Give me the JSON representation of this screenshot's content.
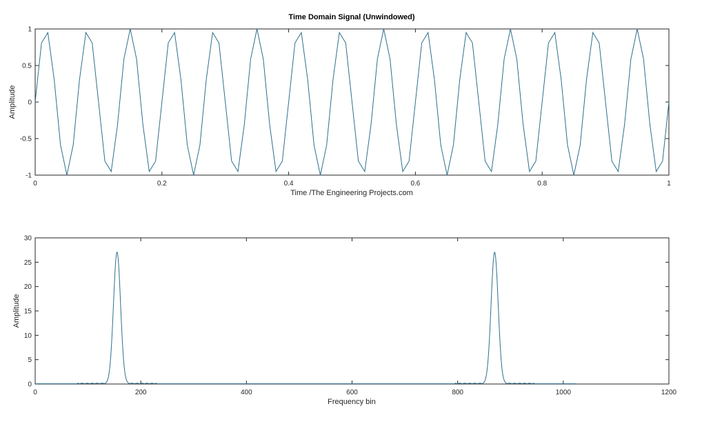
{
  "chart_data": [
    {
      "type": "line",
      "title": "Time Domain Signal (Unwindowed)",
      "xlabel": "Time /The Engineering Projects.com",
      "ylabel": "Amplitude",
      "xlim": [
        0,
        1
      ],
      "ylim": [
        -1,
        1
      ],
      "xticks": [
        0,
        0.2,
        0.4,
        0.6,
        0.8,
        1
      ],
      "xtick_labels": [
        "0",
        "0.2",
        "0.4",
        "0.6",
        "0.8",
        "1"
      ],
      "yticks": [
        -1,
        -0.5,
        0,
        0.5,
        1
      ],
      "ytick_labels": [
        "-1",
        "-0.5",
        "0",
        "0.5",
        "1"
      ],
      "grid": false,
      "line_color": "#2c6e8a",
      "series": [
        {
          "signal": "sin(2*pi*15*t)",
          "x": [
            0.0,
            0.01,
            0.02,
            0.03,
            0.04,
            0.05,
            0.06,
            0.07,
            0.08,
            0.09,
            0.1,
            0.11,
            0.12,
            0.13,
            0.14,
            0.15,
            0.16,
            0.17,
            0.18,
            0.19,
            0.2,
            0.21,
            0.22,
            0.23,
            0.24,
            0.25,
            0.26,
            0.27,
            0.28,
            0.29,
            0.3,
            0.31,
            0.32,
            0.33,
            0.34,
            0.35,
            0.36,
            0.37,
            0.38,
            0.39,
            0.4,
            0.41,
            0.42,
            0.43,
            0.44,
            0.45,
            0.46,
            0.47,
            0.48,
            0.49,
            0.5,
            0.51,
            0.52,
            0.53,
            0.54,
            0.55,
            0.56,
            0.57,
            0.58,
            0.59,
            0.6,
            0.61,
            0.62,
            0.63,
            0.64,
            0.65,
            0.66,
            0.67,
            0.68,
            0.69,
            0.7,
            0.71,
            0.72,
            0.73,
            0.74,
            0.75,
            0.76,
            0.77,
            0.78,
            0.79,
            0.8,
            0.81,
            0.82,
            0.83,
            0.84,
            0.85,
            0.86,
            0.87,
            0.88,
            0.89,
            0.9,
            0.91,
            0.92,
            0.93,
            0.94,
            0.95,
            0.96,
            0.97,
            0.98,
            0.99,
            1.0
          ],
          "y": [
            0.0,
            0.809,
            0.951,
            0.309,
            -0.588,
            -1.0,
            -0.588,
            0.309,
            0.951,
            0.809,
            0.0,
            -0.809,
            -0.951,
            -0.309,
            0.588,
            1.0,
            0.588,
            -0.309,
            -0.951,
            -0.809,
            0.0,
            0.809,
            0.951,
            0.309,
            -0.588,
            -1.0,
            -0.588,
            0.309,
            0.951,
            0.809,
            0.0,
            -0.809,
            -0.951,
            -0.309,
            0.588,
            1.0,
            0.588,
            -0.309,
            -0.951,
            -0.809,
            0.0,
            0.809,
            0.951,
            0.309,
            -0.588,
            -1.0,
            -0.588,
            0.309,
            0.951,
            0.809,
            0.0,
            -0.809,
            -0.951,
            -0.309,
            0.588,
            1.0,
            0.588,
            -0.309,
            -0.951,
            -0.809,
            0.0,
            0.809,
            0.951,
            0.309,
            -0.588,
            -1.0,
            -0.588,
            0.309,
            0.951,
            0.809,
            0.0,
            -0.809,
            -0.951,
            -0.309,
            0.588,
            1.0,
            0.588,
            -0.309,
            -0.951,
            -0.809,
            0.0,
            0.809,
            0.951,
            0.309,
            -0.588,
            -1.0,
            -0.588,
            0.309,
            0.951,
            0.809,
            0.0,
            -0.809,
            -0.951,
            -0.309,
            0.588,
            1.0,
            0.588,
            -0.309,
            -0.951,
            -0.809,
            0.0
          ]
        }
      ]
    },
    {
      "type": "line",
      "title": "",
      "xlabel": "Frequency bin",
      "ylabel": "Amplitude",
      "xlim": [
        0,
        1200
      ],
      "ylim": [
        0,
        30
      ],
      "xticks": [
        0,
        200,
        400,
        600,
        800,
        1000,
        1200
      ],
      "xtick_labels": [
        "0",
        "200",
        "400",
        "600",
        "800",
        "1000",
        "1200"
      ],
      "yticks": [
        0,
        5,
        10,
        15,
        20,
        25,
        30
      ],
      "ytick_labels": [
        "0",
        "5",
        "10",
        "15",
        "20",
        "25",
        "30"
      ],
      "grid": false,
      "line_color": "#2c6e8a",
      "series": [
        {
          "x_range": [
            0,
            1024
          ],
          "peaks": [
            {
              "x": 155,
              "y": 27
            },
            {
              "x": 870,
              "y": 27
            }
          ]
        }
      ]
    }
  ]
}
